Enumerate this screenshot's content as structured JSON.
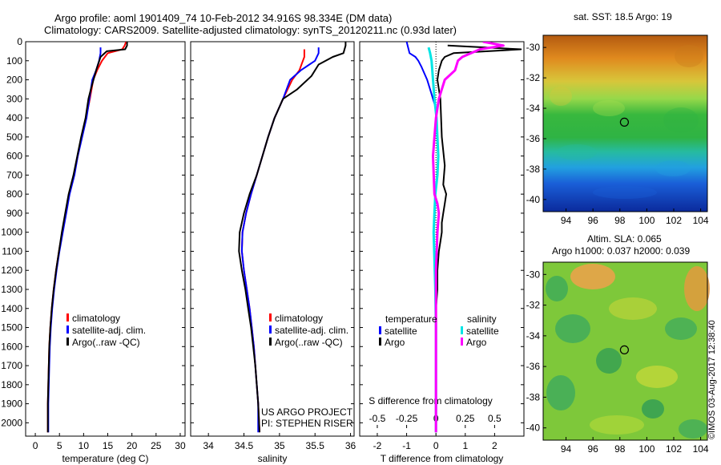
{
  "header": {
    "title_line1": "Argo profile: aoml 1901409_74 10-Feb-2012 34.916S 98.334E (DM data)",
    "title_line2": "Climatology: CARS2009. Satellite-adjusted climatology: synTS_20120211.nc (0.93d later)"
  },
  "colors": {
    "climatology": "#ff0000",
    "satellite": "#0000ff",
    "argo": "#000000",
    "s_satellite": "#00e5e5",
    "s_argo": "#ff00ff"
  },
  "depth_ticks": [
    0,
    100,
    200,
    300,
    400,
    500,
    600,
    700,
    800,
    900,
    1000,
    1100,
    1200,
    1300,
    1400,
    1500,
    1600,
    1700,
    1800,
    1900,
    2000
  ],
  "chart_data": [
    {
      "type": "line",
      "xlabel": "temperature (deg C)",
      "xlim": [
        -2,
        31
      ],
      "xticks": [
        0,
        5,
        10,
        15,
        20,
        25,
        30
      ],
      "ylim": [
        2070,
        0
      ],
      "ylabel": "",
      "legend": [
        "climatology",
        "satellite-adj. clim.",
        "Argo(..raw -QC)"
      ],
      "series": [
        {
          "name": "climatology",
          "color": "#ff0000",
          "width": 2,
          "x": [
            18.8,
            18.5,
            18,
            15,
            13.8,
            12.8,
            12,
            11.3,
            10.5,
            9.6,
            8.8,
            8,
            7,
            6.3,
            5.6,
            4.9,
            4.3,
            3.8,
            3.4,
            3.1,
            2.9,
            2.8,
            2.7,
            2.6,
            2.6
          ],
          "y": [
            0,
            20,
            40,
            60,
            100,
            150,
            200,
            300,
            400,
            500,
            600,
            700,
            800,
            900,
            1000,
            1100,
            1200,
            1300,
            1400,
            1500,
            1600,
            1700,
            1800,
            1900,
            2050
          ]
        },
        {
          "name": "satellite-adj. clim.",
          "color": "#0000ff",
          "width": 2,
          "x": [
            13.5,
            13.5,
            13.2,
            12.6,
            11.8,
            11.2,
            10.6,
            9.7,
            8.8,
            8.1,
            7.1,
            6.4,
            5.7,
            5,
            4.4,
            3.9,
            3.5,
            3.2,
            3,
            2.9,
            2.8,
            2.7,
            2.7
          ],
          "y": [
            30,
            60,
            100,
            150,
            200,
            300,
            400,
            500,
            600,
            700,
            800,
            900,
            1000,
            1100,
            1200,
            1300,
            1400,
            1500,
            1600,
            1700,
            1800,
            1900,
            2050
          ]
        },
        {
          "name": "Argo(..raw -QC)",
          "color": "#000000",
          "width": 2,
          "x": [
            19,
            19,
            18.6,
            14.8,
            13.5,
            12.6,
            11.5,
            11,
            10.4,
            9.5,
            8.7,
            7.9,
            6.9,
            6.2,
            5.5,
            4.9,
            4.3,
            3.8,
            3.4,
            3.1,
            2.9,
            2.8,
            2.7,
            2.6,
            2.6
          ],
          "y": [
            0,
            20,
            40,
            50,
            80,
            150,
            250,
            300,
            400,
            500,
            600,
            700,
            800,
            900,
            1000,
            1100,
            1200,
            1300,
            1400,
            1500,
            1600,
            1700,
            1800,
            1900,
            2050
          ]
        }
      ]
    },
    {
      "type": "line",
      "xlabel": "salinity",
      "xlim": [
        33.75,
        36.05
      ],
      "xticks": [
        34,
        34.5,
        35,
        35.5,
        36
      ],
      "xtick_labels": [
        "34",
        "34.5",
        "35",
        "35.5",
        "36"
      ],
      "ylim": [
        2070,
        0
      ],
      "legend": [
        "climatology",
        "satellite-adj. clim.",
        "Argo(..raw -QC)"
      ],
      "annotation": [
        "US ARGO PROJECT",
        "PI: STEPHEN RISER"
      ],
      "series": [
        {
          "name": "climatology",
          "color": "#ff0000",
          "width": 2,
          "x": [
            35.35,
            35.35,
            35.33,
            35.28,
            35.18,
            35.05,
            34.93,
            34.84,
            34.76,
            34.68,
            34.6,
            34.53,
            34.48,
            34.47,
            34.5,
            34.54,
            34.58,
            34.61,
            34.64,
            34.66,
            34.68,
            34.7,
            34.72
          ],
          "y": [
            40,
            80,
            100,
            150,
            200,
            300,
            400,
            500,
            600,
            700,
            800,
            900,
            1000,
            1100,
            1200,
            1300,
            1400,
            1500,
            1600,
            1700,
            1800,
            1900,
            2050
          ]
        },
        {
          "name": "satellite-adj. clim.",
          "color": "#0000ff",
          "width": 2,
          "x": [
            35.55,
            35.55,
            35.5,
            35.3,
            35.15,
            35.05,
            34.93,
            34.84,
            34.76,
            34.68,
            34.6,
            34.53,
            34.48,
            34.47,
            34.5,
            34.54,
            34.58,
            34.61,
            34.64,
            34.66,
            34.68,
            34.7,
            34.7
          ],
          "y": [
            30,
            60,
            100,
            150,
            200,
            300,
            400,
            500,
            600,
            700,
            800,
            900,
            1000,
            1100,
            1200,
            1300,
            1400,
            1500,
            1600,
            1700,
            1800,
            1900,
            2050
          ]
        },
        {
          "name": "Argo(..raw -QC)",
          "color": "#000000",
          "width": 2,
          "x": [
            35.93,
            35.93,
            35.9,
            35.75,
            35.55,
            35.45,
            35.25,
            35.05,
            34.93,
            34.84,
            34.76,
            34.68,
            34.58,
            34.5,
            34.44,
            34.43,
            34.47,
            34.52,
            34.56,
            34.6,
            34.63,
            34.66,
            34.68,
            34.7,
            34.72
          ],
          "y": [
            0,
            20,
            60,
            80,
            120,
            180,
            250,
            300,
            400,
            500,
            600,
            700,
            800,
            900,
            1000,
            1100,
            1200,
            1300,
            1400,
            1500,
            1600,
            1700,
            1800,
            1900,
            2050
          ]
        }
      ]
    },
    {
      "type": "line",
      "xlabel": "T difference from climatology",
      "xlabel_top": "S difference from climatology",
      "xlim": [
        -2.6,
        3
      ],
      "xticks": [
        -2,
        -1,
        0,
        1,
        2
      ],
      "top_ticks": [
        -0.5,
        -0.25,
        0,
        0.25,
        0.5
      ],
      "top_tick_labels": [
        "-0.5",
        "-0.25",
        "0",
        "0.25",
        "0.5"
      ],
      "top_scale": 4,
      "ylim": [
        2070,
        0
      ],
      "legend_headers": [
        "temperature",
        "salinity"
      ],
      "legend": [
        "satellite",
        "Argo",
        "satellite",
        "Argo"
      ],
      "series": [
        {
          "name": "temperature satellite",
          "color": "#0000ff",
          "width": 2,
          "x": [
            -1.0,
            -0.9,
            -0.7,
            -0.6,
            -0.5,
            -0.3,
            -0.2,
            -0.1,
            0
          ],
          "y": [
            0,
            60,
            80,
            100,
            130,
            200,
            250,
            300,
            350
          ]
        },
        {
          "name": "temperature Argo",
          "color": "#000000",
          "width": 2,
          "x": [
            0.4,
            2.9,
            0.6,
            0.3,
            0.2,
            0.1,
            0.05,
            0.15,
            0.2,
            0.3,
            0.25,
            0.35,
            0.3,
            0.25,
            0.2,
            0.2,
            0.15,
            0.1,
            0.05,
            0.05,
            0,
            0,
            0
          ],
          "y": [
            20,
            40,
            60,
            80,
            100,
            150,
            200,
            300,
            500,
            650,
            750,
            800,
            850,
            900,
            950,
            1000,
            1050,
            1100,
            1200,
            1300,
            1400,
            1600,
            2050
          ]
        },
        {
          "name": "salinity satellite",
          "color": "#00e5e5",
          "width": 3,
          "x": [
            -0.25,
            -0.2,
            -0.15,
            -0.1,
            -0.05,
            0.02,
            0.05,
            0.08,
            0.05,
            -0.02,
            -0.05,
            -0.08,
            -0.06,
            -0.04,
            -0.02,
            0,
            0
          ],
          "y": [
            30,
            60,
            100,
            200,
            300,
            400,
            500,
            600,
            700,
            800,
            900,
            1000,
            1100,
            1200,
            1300,
            1500,
            2050
          ]
        },
        {
          "name": "salinity Argo",
          "color": "#ff00ff",
          "width": 3,
          "x": [
            1.6,
            2.3,
            1.5,
            1.2,
            0.9,
            0.75,
            0.65,
            0.3,
            0.1,
            0,
            -0.05,
            -0.1,
            -0.05,
            0.05,
            0.1,
            0.05,
            0,
            0
          ],
          "y": [
            0,
            20,
            40,
            60,
            80,
            100,
            150,
            200,
            300,
            400,
            500,
            600,
            800,
            850,
            900,
            1000,
            1200,
            2050
          ]
        }
      ]
    },
    {
      "type": "heatmap",
      "title": "sat. SST: 18.5 Argo: 19",
      "xticks": [
        94,
        96,
        98,
        100,
        102,
        104
      ],
      "yticks": [
        -30,
        -32,
        -34,
        -36,
        -38,
        -40
      ],
      "xlim": [
        92.3,
        104.5
      ],
      "ylim": [
        -40.8,
        -29.2
      ],
      "marker": {
        "lon": 98.334,
        "lat": -34.916
      }
    },
    {
      "type": "heatmap",
      "title_line1": "Altim. SLA: 0.065",
      "title_line2": "Argo h1000: 0.037 h2000: 0.039",
      "xticks": [
        94,
        96,
        98,
        100,
        102,
        104
      ],
      "yticks": [
        -30,
        -32,
        -34,
        -36,
        -38,
        -40
      ],
      "xlim": [
        92.3,
        104.5
      ],
      "ylim": [
        -40.8,
        -29.2
      ],
      "marker": {
        "lon": 98.334,
        "lat": -34.916
      }
    }
  ],
  "footer": {
    "stamp": "©IMOS 03-Aug-2017 12:38:40"
  }
}
